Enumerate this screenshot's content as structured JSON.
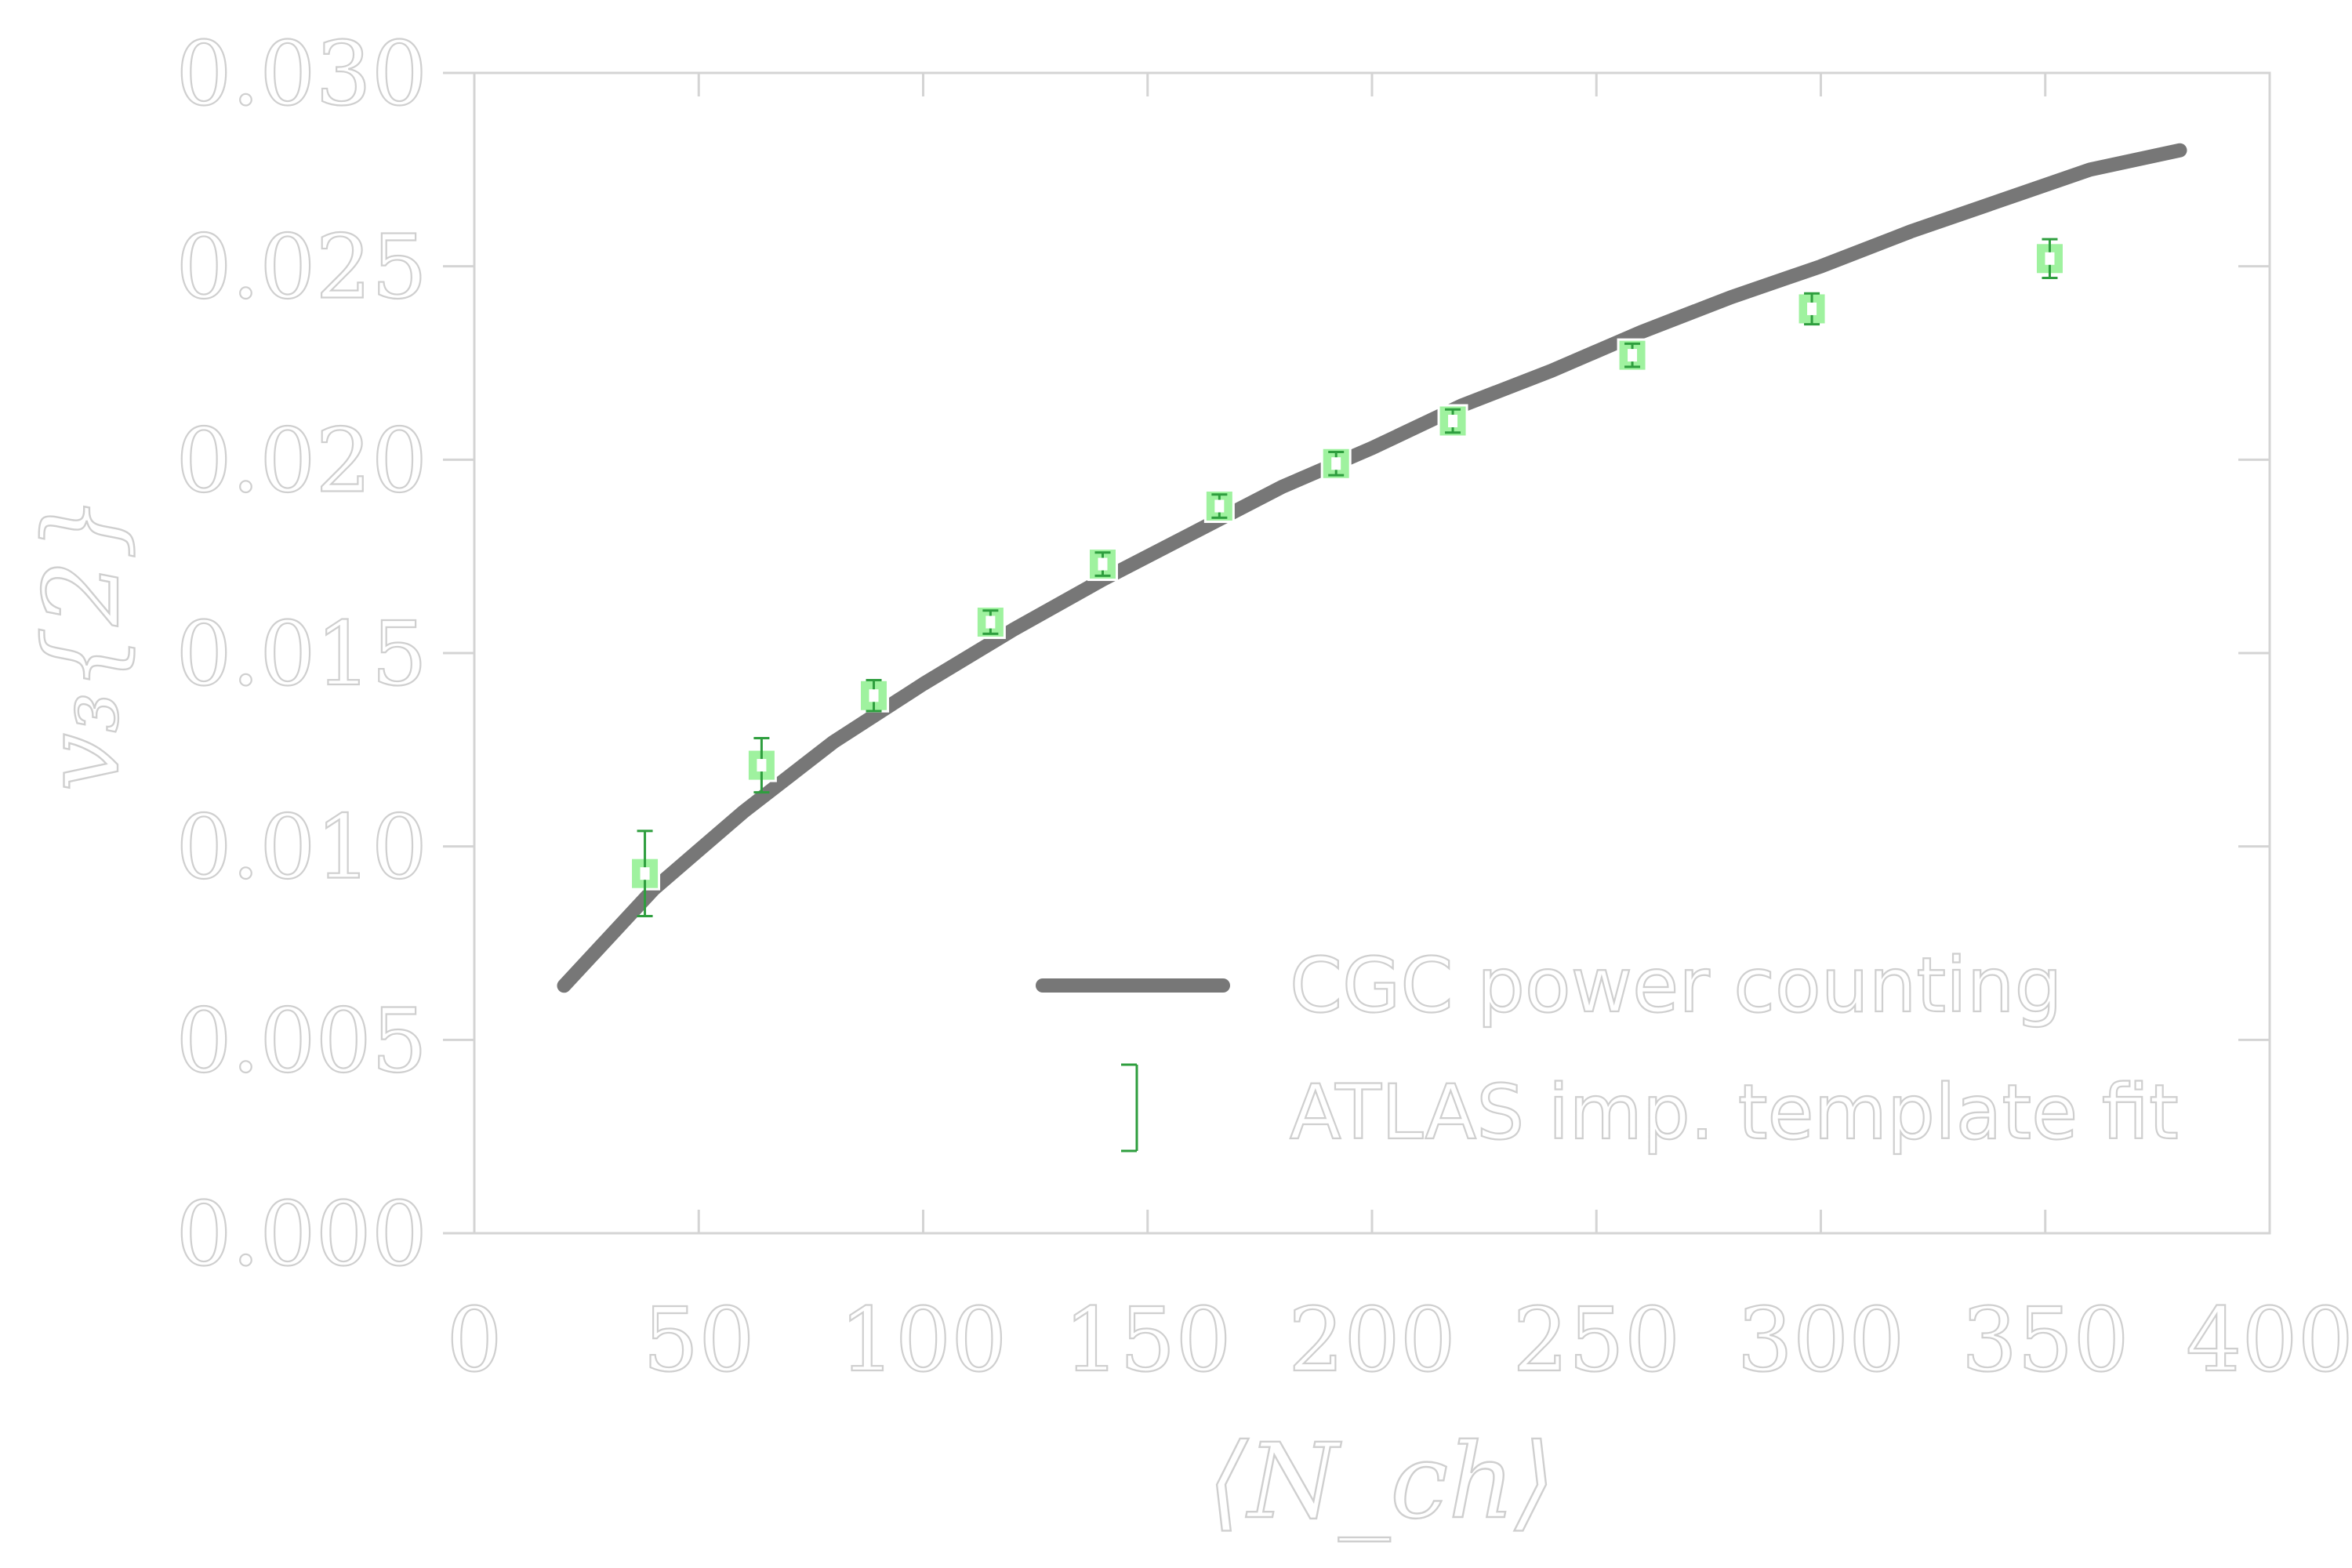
{
  "chart_data": {
    "type": "scatter",
    "title": "",
    "xlabel": "⟨N_ch⟩",
    "ylabel": "v₃{2}",
    "xlim": [
      0,
      400
    ],
    "ylim": [
      0.0,
      0.03
    ],
    "x_ticks": [
      "0",
      "50",
      "100",
      "150",
      "200",
      "250",
      "300",
      "350",
      "400"
    ],
    "y_ticks": [
      "0.000",
      "0.005",
      "0.010",
      "0.015",
      "0.020",
      "0.025",
      "0.030"
    ],
    "grid": false,
    "legend_position": "lower-right",
    "series": [
      {
        "name": "CGC power counting",
        "kind": "line",
        "color": "#777777",
        "x": [
          20,
          40,
          60,
          80,
          100,
          120,
          140,
          160,
          180,
          200,
          220,
          240,
          260,
          280,
          300,
          320,
          340,
          360,
          380
        ],
        "y": [
          0.0064,
          0.0089,
          0.0109,
          0.0127,
          0.0142,
          0.0156,
          0.0169,
          0.0181,
          0.0193,
          0.0203,
          0.0214,
          0.0223,
          0.0233,
          0.0242,
          0.025,
          0.0259,
          0.0267,
          0.0275,
          0.028
        ]
      },
      {
        "name": "ATLAS imp. template fit",
        "kind": "errorbar",
        "color": "#2e9e3e",
        "box_color": "#9ff29f",
        "x": [
          38,
          64,
          89,
          115,
          140,
          166,
          192,
          218,
          258,
          298,
          351
        ],
        "y": [
          0.0093,
          0.0121,
          0.0139,
          0.0158,
          0.0173,
          0.0188,
          0.0199,
          0.021,
          0.0227,
          0.0239,
          0.0252
        ],
        "yerr": [
          0.0011,
          0.0007,
          0.0004,
          0.0003,
          0.0003,
          0.0003,
          0.0003,
          0.0003,
          0.0003,
          0.0004,
          0.0005
        ]
      }
    ]
  }
}
